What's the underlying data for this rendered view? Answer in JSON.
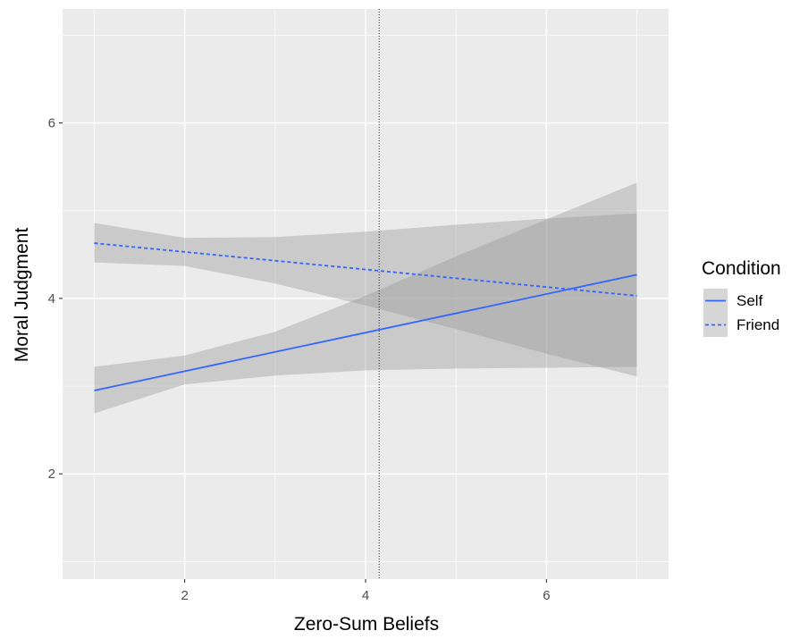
{
  "chart_data": {
    "type": "line",
    "title": "",
    "xlabel": "Zero-Sum Beliefs",
    "ylabel": "Moral Judgment",
    "xlim": [
      0.65,
      7.35
    ],
    "ylim": [
      0.8,
      7.3
    ],
    "x_ticks": [
      "2",
      "4",
      "6"
    ],
    "y_ticks": [
      "2",
      "4",
      "6"
    ],
    "x_tick_values": [
      2,
      4,
      6
    ],
    "y_tick_values": [
      2,
      4,
      6
    ],
    "x_minor_values": [
      1,
      3,
      5,
      7
    ],
    "y_minor_values": [
      1,
      3,
      5,
      7
    ],
    "grid": true,
    "background": "#ebebeb",
    "vline": {
      "x": 4.15,
      "style": "dotted"
    },
    "legend": {
      "title": "Condition",
      "placement": "right"
    },
    "series": [
      {
        "name": "Self",
        "line_style": "solid",
        "color": "#3366ff",
        "x": [
          1,
          7
        ],
        "y": [
          2.95,
          4.27
        ],
        "ribbon_x": [
          1,
          2,
          3,
          4,
          5,
          6,
          7
        ],
        "ribbon_lower": [
          2.69,
          3.02,
          3.12,
          3.18,
          3.2,
          3.21,
          3.22
        ],
        "ribbon_upper": [
          3.22,
          3.35,
          3.62,
          4.03,
          4.48,
          4.9,
          5.32
        ]
      },
      {
        "name": "Friend",
        "line_style": "dashed",
        "color": "#3366ff",
        "x": [
          1,
          7
        ],
        "y": [
          4.63,
          4.03
        ],
        "ribbon_x": [
          1,
          2,
          3,
          4,
          5,
          6,
          7
        ],
        "ribbon_lower": [
          4.41,
          4.37,
          4.17,
          3.92,
          3.65,
          3.37,
          3.11
        ],
        "ribbon_upper": [
          4.86,
          4.69,
          4.7,
          4.76,
          4.84,
          4.91,
          4.97
        ]
      }
    ]
  }
}
